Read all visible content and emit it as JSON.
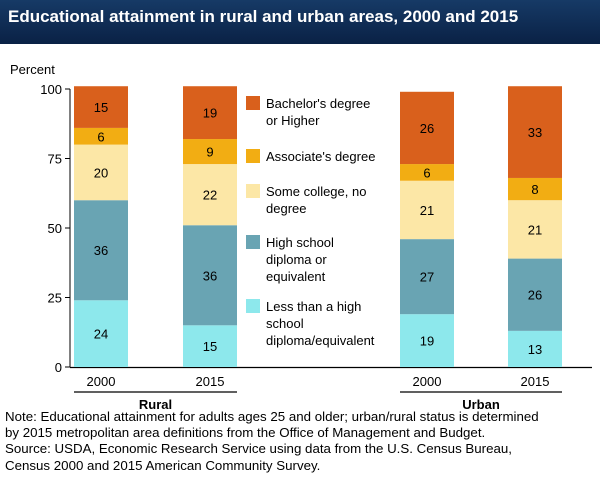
{
  "title": "Educational attainment in rural and urban areas, 2000 and 2015",
  "colors": {
    "title_bg": "#0d2a52",
    "bachelors": "#d9601c",
    "associates": "#f2ad13",
    "some_college": "#fce7a6",
    "high_school": "#69a4b3",
    "less_than_hs": "#8de8ec"
  },
  "chart_data": {
    "type": "bar",
    "stacked": true,
    "ylabel": "Percent",
    "ylim": [
      0,
      100
    ],
    "yticks": [
      0,
      25,
      50,
      75,
      100
    ],
    "groups": [
      {
        "name": "Rural",
        "categories": [
          "2000",
          "2015"
        ]
      },
      {
        "name": "Urban",
        "categories": [
          "2000",
          "2015"
        ]
      }
    ],
    "categories": [
      "2000",
      "2015",
      "2000",
      "2015"
    ],
    "series": [
      {
        "name": "Less than a high school diploma/equivalent",
        "key": "less_than_hs",
        "values": [
          24,
          15,
          19,
          13
        ]
      },
      {
        "name": "High school diploma or equivalent",
        "key": "high_school",
        "values": [
          36,
          36,
          27,
          26
        ]
      },
      {
        "name": "Some college, no degree",
        "key": "some_college",
        "values": [
          20,
          22,
          21,
          21
        ]
      },
      {
        "name": "Associate's degree",
        "key": "associates",
        "values": [
          6,
          9,
          6,
          8
        ]
      },
      {
        "name": "Bachelor's degree or Higher",
        "key": "bachelors",
        "values": [
          15,
          19,
          26,
          33
        ]
      }
    ],
    "legend": [
      {
        "key": "bachelors",
        "lines": [
          "Bachelor's degree",
          "or Higher"
        ]
      },
      {
        "key": "associates",
        "lines": [
          "Associate's degree"
        ]
      },
      {
        "key": "some_college",
        "lines": [
          "Some college, no",
          "degree"
        ]
      },
      {
        "key": "high_school",
        "lines": [
          "High school",
          "diploma or",
          "equivalent"
        ]
      },
      {
        "key": "less_than_hs",
        "lines": [
          "Less than a high",
          "school",
          "diploma/equivalent"
        ]
      }
    ],
    "legend_position": "center"
  },
  "note": {
    "lines": [
      "Note: Educational attainment for adults ages 25 and older; urban/rural status is determined",
      "by 2015 metropolitan area definitions from the Office of Management and Budget.",
      "Source: USDA, Economic Research Service using data from the U.S. Census Bureau,",
      "Census 2000 and 2015 American Community Survey."
    ]
  }
}
